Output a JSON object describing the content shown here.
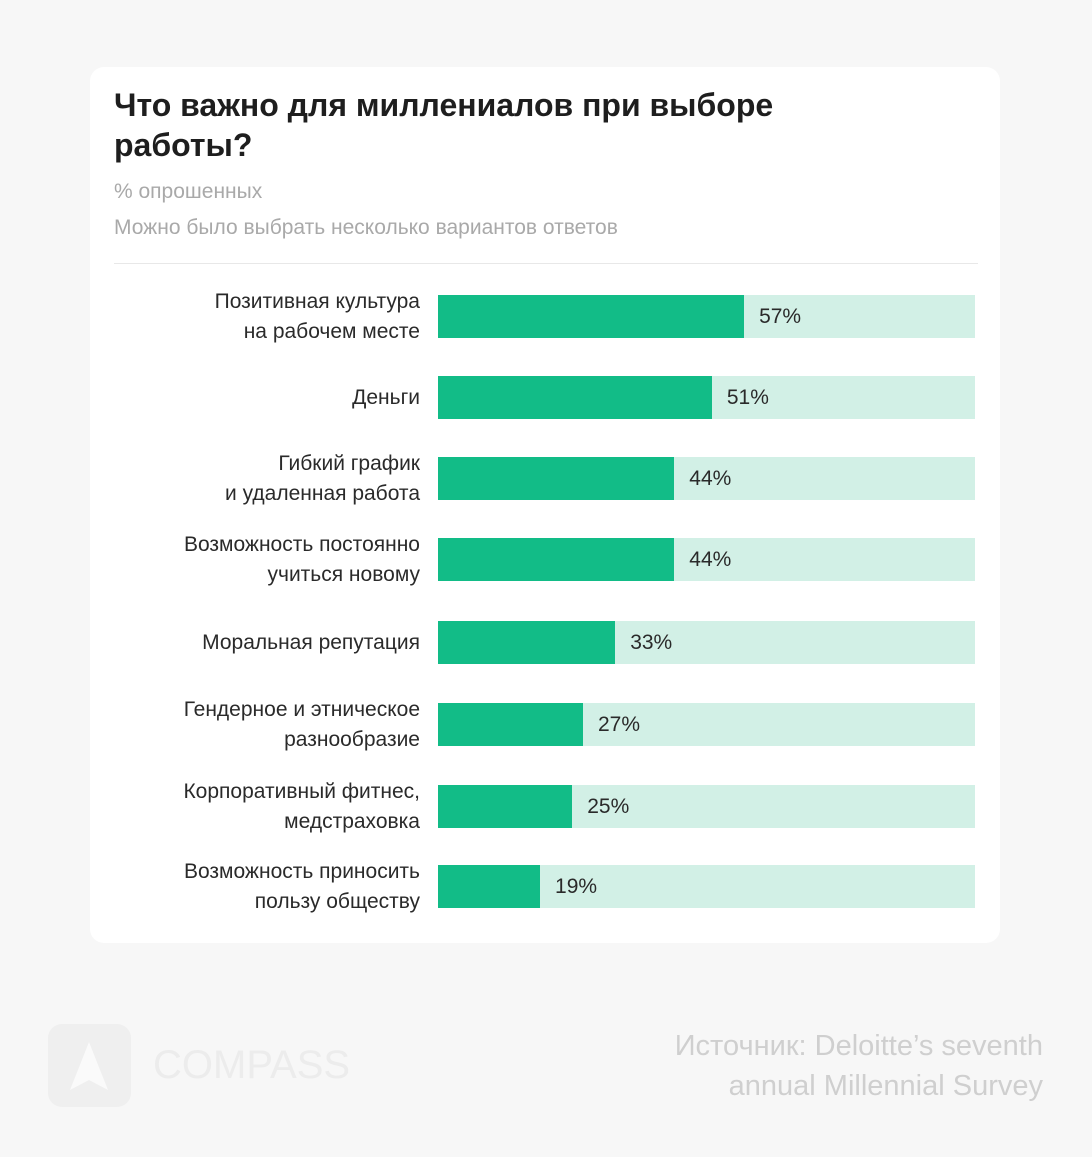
{
  "title": "Что важно для миллениалов при выборе работы?",
  "subtitle1": "% опрошенных",
  "subtitle2": "Можно было выбрать несколько вариантов ответов",
  "brand": "COMPASS",
  "source": "Источник: Deloitte’s seventh\nannual Millennial Survey",
  "colors": {
    "bar": "#12bc87",
    "track": "#d2f0e6"
  },
  "chart_data": {
    "type": "bar",
    "orientation": "horizontal",
    "title": "Что важно для миллениалов при выборе работы?",
    "xlabel": "",
    "ylabel": "% опрошенных",
    "xlim": [
      0,
      100
    ],
    "categories": [
      "Позитивная культура\nна рабочем месте",
      "Деньги",
      "Гибкий график\nи удаленная работа",
      "Возможность постоянно\nучиться новому",
      "Моральная репутация",
      "Гендерное и этническое\nразнообразие",
      "Корпоративный фитнес,\nмедстраховка",
      "Возможность приносить\nпользу обществу"
    ],
    "values": [
      57,
      51,
      44,
      44,
      33,
      27,
      25,
      19
    ],
    "labels": [
      "57%",
      "51%",
      "44%",
      "44%",
      "33%",
      "27%",
      "25%",
      "19%"
    ]
  }
}
